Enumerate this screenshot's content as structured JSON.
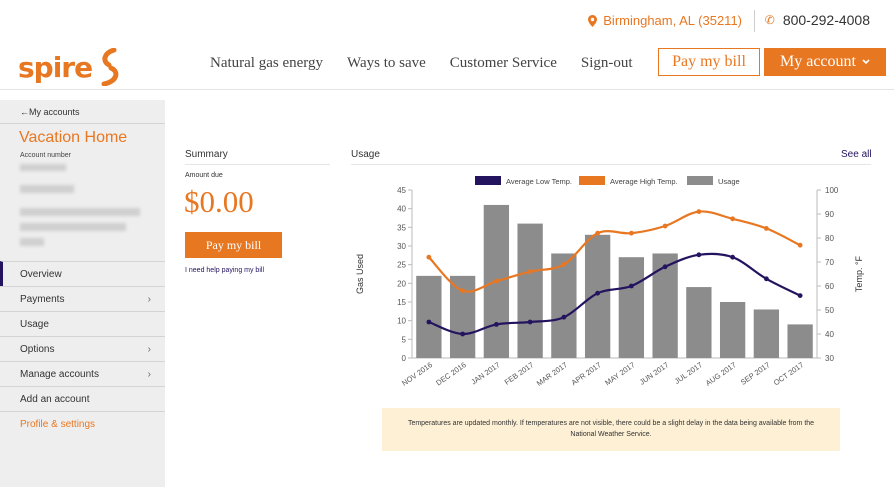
{
  "topbar": {
    "location": "Birmingham, AL (35211)",
    "phone": "800-292-4008",
    "location_icon": "pin-icon",
    "phone_icon": "phone-icon"
  },
  "header": {
    "logo_text": "spire",
    "nav": [
      "Natural gas energy",
      "Ways to save",
      "Customer Service",
      "Sign-out"
    ],
    "pay_bill_label": "Pay my bill",
    "my_account_label": "My account"
  },
  "sidebar": {
    "back_label": "My accounts",
    "account_title": "Vacation Home",
    "account_number_label": "Account number",
    "items": [
      {
        "label": "Overview",
        "chevron": false
      },
      {
        "label": "Payments",
        "chevron": true
      },
      {
        "label": "Usage",
        "chevron": false
      },
      {
        "label": "Options",
        "chevron": true
      },
      {
        "label": "Manage accounts",
        "chevron": true
      },
      {
        "label": "Add an account",
        "chevron": false
      },
      {
        "label": "Profile & settings",
        "chevron": false
      }
    ]
  },
  "summary": {
    "heading": "Summary",
    "amount_label": "Amount due",
    "amount": "$0.00",
    "pay_label": "Pay my bill",
    "help_link": "I need help paying my bill"
  },
  "usage": {
    "heading": "Usage",
    "see_all": "See all",
    "note": "Temperatures are updated monthly. If temperatures are not visible, there could be a slight delay in the data being available from the National Weather Service."
  },
  "colors": {
    "accent": "#e87722",
    "navy": "#24135f",
    "bar": "#8c8c8c"
  },
  "chart_data": {
    "type": "bar",
    "categories": [
      "NOV 2016",
      "DEC 2016",
      "JAN 2017",
      "FEB 2017",
      "MAR 2017",
      "APR 2017",
      "MAY 2017",
      "JUN 2017",
      "JUL 2017",
      "AUG 2017",
      "SEP 2017",
      "OCT 2017"
    ],
    "series": [
      {
        "name": "Usage",
        "type": "bar",
        "axis": "left",
        "values": [
          22,
          22,
          41,
          36,
          28,
          33,
          27,
          28,
          19,
          15,
          13,
          9
        ]
      },
      {
        "name": "Average Low Temp.",
        "type": "line",
        "axis": "right",
        "values": [
          45,
          40,
          44,
          45,
          47,
          57,
          60,
          68,
          73,
          72,
          63,
          56
        ]
      },
      {
        "name": "Average High Temp.",
        "type": "line",
        "axis": "right",
        "values": [
          72,
          58,
          62,
          66,
          69,
          82,
          82,
          85,
          91,
          88,
          84,
          77
        ]
      }
    ],
    "ylabel": "Gas Used",
    "y2label": "Temp. °F",
    "ylim": [
      0,
      45
    ],
    "y2lim": [
      30,
      100
    ],
    "yticks": [
      0,
      5,
      10,
      15,
      20,
      25,
      30,
      35,
      40,
      45
    ],
    "y2ticks": [
      30,
      40,
      50,
      60,
      70,
      80,
      90,
      100
    ],
    "legend_position": "top",
    "grid": false
  }
}
